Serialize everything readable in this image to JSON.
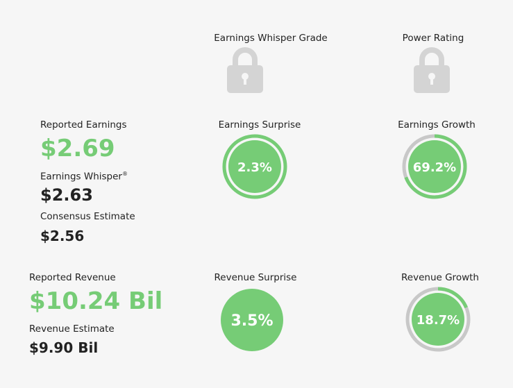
{
  "colors": {
    "green": "#76cc76",
    "ring_track": "#c8c8c8",
    "lock": "#d4d4d4",
    "background": "#f6f6f6"
  },
  "grades": {
    "whisper_grade_label": "Earnings Whisper Grade",
    "power_rating_label": "Power Rating",
    "icon": "lock-icon"
  },
  "earnings": {
    "reported_label": "Reported Earnings",
    "reported_value": "$2.69",
    "whisper_label": "Earnings Whisper",
    "whisper_mark": "®",
    "whisper_value": "$2.63",
    "consensus_label": "Consensus Estimate",
    "consensus_value": "$2.56",
    "surprise_label": "Earnings Surprise",
    "surprise_value": "2.3%",
    "surprise_fill": 1.0,
    "growth_label": "Earnings Growth",
    "growth_value": "69.2%",
    "growth_fill": 0.692
  },
  "revenue": {
    "reported_label": "Reported Revenue",
    "reported_value": "$10.24 Bil",
    "estimate_label": "Revenue Estimate",
    "estimate_value": "$9.90 Bil",
    "surprise_label": "Revenue Surprise",
    "surprise_value": "3.5%",
    "growth_label": "Revenue Growth",
    "growth_value": "18.7%",
    "growth_fill": 0.187
  }
}
